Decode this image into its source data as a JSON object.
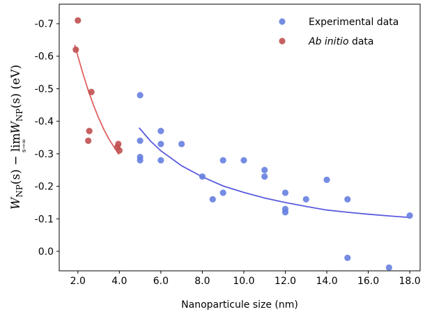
{
  "chart_data": {
    "type": "scatter",
    "xlabel": "Nanoparticule size (nm)",
    "ylabel": "W_NP(s) − lim_{s→∞} W_NP(s) (eV)",
    "ylabel_parts": {
      "a": "W",
      "a_sub": "NP",
      "b": "(s) − ",
      "lim": "lim",
      "lim_sub": "s→∞",
      "c": "W",
      "c_sub": "NP",
      "d": "(s) (eV)"
    },
    "xlim": [
      1.1,
      18.5
    ],
    "ylim": [
      0.06,
      -0.76
    ],
    "y_inverted": true,
    "x_ticks": [
      2.0,
      4.0,
      6.0,
      8.0,
      10.0,
      12.0,
      14.0,
      16.0,
      18.0
    ],
    "x_tick_labels": [
      "2.0",
      "4.0",
      "6.0",
      "8.0",
      "10.0",
      "12.0",
      "14.0",
      "16.0",
      "18.0"
    ],
    "y_ticks": [
      0.0,
      -0.1,
      -0.2,
      -0.3,
      -0.4,
      -0.5,
      -0.6,
      -0.7
    ],
    "y_tick_labels": [
      "0.0",
      "-0.1",
      "-0.2",
      "-0.3",
      "-0.4",
      "-0.5",
      "-0.6",
      "-0.7"
    ],
    "legend_position": "top-right",
    "grid": false,
    "series": [
      {
        "name": "Experimental data",
        "color": "#6680e0",
        "points": [
          [
            5.0,
            -0.48
          ],
          [
            5.0,
            -0.34
          ],
          [
            5.0,
            -0.29
          ],
          [
            5.0,
            -0.28
          ],
          [
            6.0,
            -0.37
          ],
          [
            6.0,
            -0.33
          ],
          [
            6.0,
            -0.28
          ],
          [
            7.0,
            -0.33
          ],
          [
            8.0,
            -0.23
          ],
          [
            8.5,
            -0.16
          ],
          [
            9.0,
            -0.28
          ],
          [
            9.0,
            -0.18
          ],
          [
            10.0,
            -0.28
          ],
          [
            11.0,
            -0.25
          ],
          [
            11.0,
            -0.23
          ],
          [
            12.0,
            -0.18
          ],
          [
            12.0,
            -0.13
          ],
          [
            12.0,
            -0.12
          ],
          [
            13.0,
            -0.16
          ],
          [
            14.0,
            -0.22
          ],
          [
            15.0,
            -0.16
          ],
          [
            15.0,
            0.02
          ],
          [
            17.0,
            0.05
          ],
          [
            18.0,
            -0.11
          ]
        ]
      },
      {
        "name_parts": {
          "italic": "Ab initio",
          "rest": " data"
        },
        "color": "#c05050",
        "points": [
          [
            1.9,
            -0.62
          ],
          [
            2.0,
            -0.71
          ],
          [
            2.5,
            -0.34
          ],
          [
            2.55,
            -0.37
          ],
          [
            2.65,
            -0.49
          ],
          [
            3.9,
            -0.32
          ],
          [
            3.95,
            -0.33
          ],
          [
            4.0,
            -0.31
          ]
        ]
      }
    ],
    "fits": [
      {
        "color": "#5a5ae0",
        "points": [
          [
            4.95,
            -0.38
          ],
          [
            5.5,
            -0.339
          ],
          [
            6.0,
            -0.309
          ],
          [
            7.0,
            -0.263
          ],
          [
            8.0,
            -0.229
          ],
          [
            9.0,
            -0.201
          ],
          [
            10.0,
            -0.181
          ],
          [
            11.0,
            -0.164
          ],
          [
            12.0,
            -0.15
          ],
          [
            13.0,
            -0.138
          ],
          [
            14.0,
            -0.127
          ],
          [
            15.0,
            -0.12
          ],
          [
            16.0,
            -0.114
          ],
          [
            17.0,
            -0.109
          ],
          [
            18.0,
            -0.104
          ]
        ]
      },
      {
        "color": "#e06060",
        "points": [
          [
            1.85,
            -0.635
          ],
          [
            2.0,
            -0.6
          ],
          [
            2.25,
            -0.545
          ],
          [
            2.5,
            -0.495
          ],
          [
            2.75,
            -0.45
          ],
          [
            3.0,
            -0.41
          ],
          [
            3.25,
            -0.375
          ],
          [
            3.5,
            -0.345
          ],
          [
            3.75,
            -0.32
          ],
          [
            3.98,
            -0.298
          ]
        ]
      }
    ]
  }
}
